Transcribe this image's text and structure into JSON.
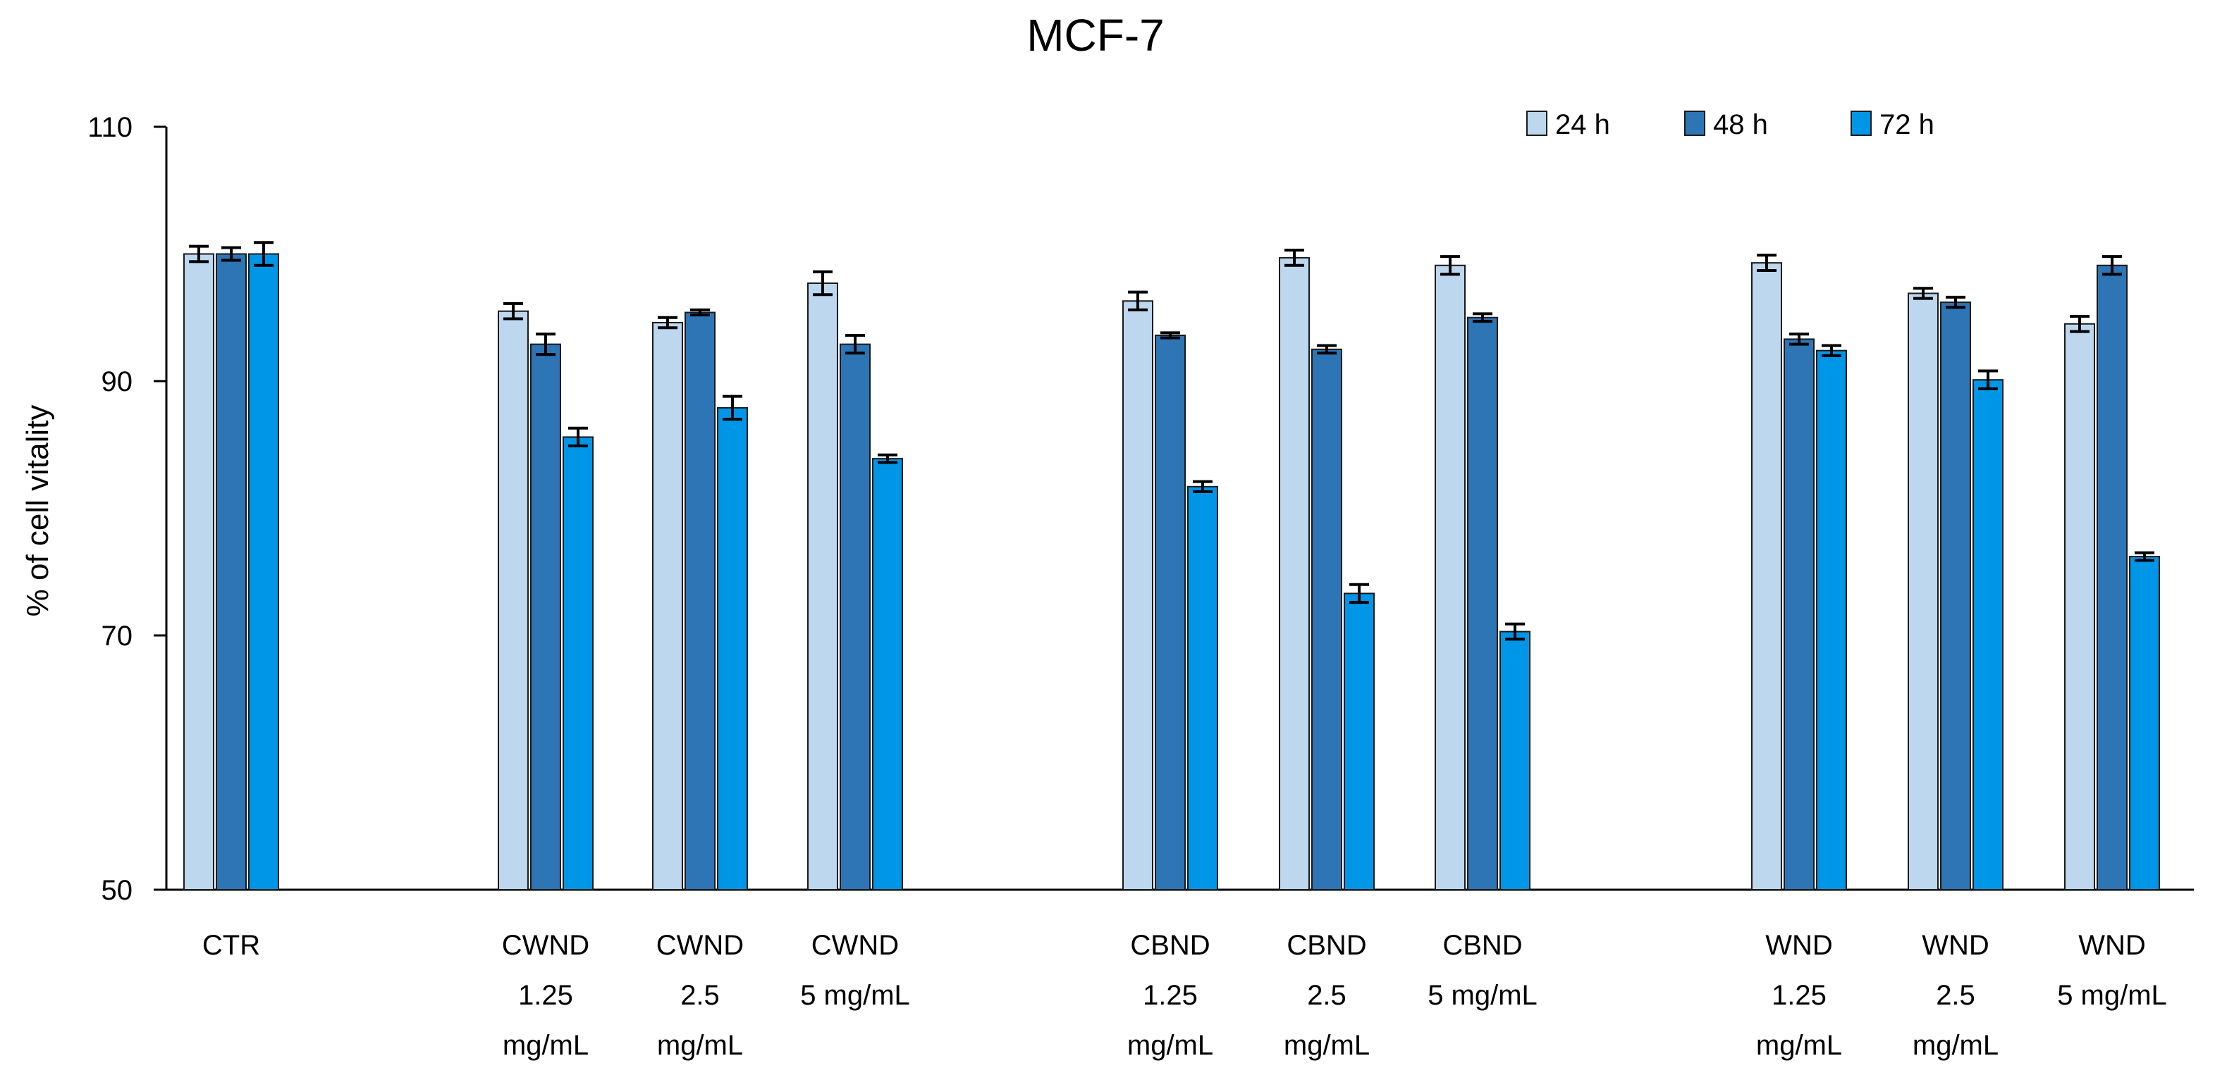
{
  "chart_data": {
    "type": "bar",
    "title": "MCF-7",
    "ylabel": "% of cell vitality",
    "xlabel": "",
    "ylim": [
      50,
      110
    ],
    "yticks": [
      50,
      70,
      90,
      110
    ],
    "legend_position": "top-right",
    "categories": [
      [
        "CTR"
      ],
      [
        "CWND",
        "1.25",
        "mg/mL"
      ],
      [
        "CWND",
        "2.5",
        "mg/mL"
      ],
      [
        "CWND",
        "5 mg/mL"
      ],
      [
        "CBND",
        "1.25",
        "mg/mL"
      ],
      [
        "CBND",
        "2.5",
        "mg/mL"
      ],
      [
        "CBND",
        "5 mg/mL"
      ],
      [
        "WND",
        "1.25",
        "mg/mL"
      ],
      [
        "WND",
        "2.5",
        "mg/mL"
      ],
      [
        "WND",
        "5 mg/mL"
      ]
    ],
    "series": [
      {
        "name": "24 h",
        "color": "#BDD7EE",
        "values": [
          100,
          95.5,
          94.6,
          97.7,
          96.3,
          99.7,
          99.1,
          99.3,
          96.9,
          94.5
        ],
        "errors": [
          0.6,
          0.6,
          0.4,
          0.9,
          0.7,
          0.6,
          0.7,
          0.6,
          0.4,
          0.6
        ]
      },
      {
        "name": "48 h",
        "color": "#2E75B6",
        "values": [
          100,
          92.9,
          95.4,
          92.9,
          93.6,
          92.5,
          95.0,
          93.3,
          96.2,
          99.1
        ],
        "errors": [
          0.5,
          0.8,
          0.2,
          0.7,
          0.2,
          0.3,
          0.3,
          0.4,
          0.4,
          0.7
        ]
      },
      {
        "name": "72 h",
        "color": "#0096E8",
        "values": [
          100,
          85.6,
          87.9,
          83.9,
          81.7,
          73.3,
          70.3,
          92.4,
          90.1,
          76.2
        ],
        "errors": [
          0.9,
          0.7,
          0.9,
          0.3,
          0.4,
          0.7,
          0.6,
          0.4,
          0.7,
          0.3
        ]
      }
    ]
  }
}
